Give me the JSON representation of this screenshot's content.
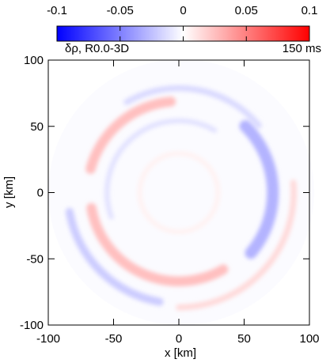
{
  "chart_data": {
    "type": "heatmap",
    "title": "",
    "panel_label": "δρ, R0.0-3D",
    "time_label": "150 ms",
    "xlabel": "x [km]",
    "ylabel": "y [km]",
    "xlim": [
      -100,
      100
    ],
    "ylim": [
      -100,
      100
    ],
    "x_ticks": [
      -100,
      -50,
      0,
      50,
      100
    ],
    "y_ticks": [
      -100,
      -50,
      0,
      50,
      100
    ],
    "x_tick_labels": [
      "-100",
      "-50",
      "0",
      "50",
      "100"
    ],
    "y_tick_labels": [
      "-100",
      "-50",
      "0",
      "50",
      "100"
    ],
    "domain_radius_km": 100,
    "colorbar": {
      "range": [
        -0.1,
        0.1
      ],
      "ticks": [
        -0.1,
        -0.05,
        0,
        0.05,
        0.1
      ],
      "tick_labels": [
        "-0.1",
        "-0.05",
        "0",
        "0.05",
        "0.1"
      ],
      "colors": {
        "min": "#0000ff",
        "mid": "#ffffff",
        "max": "#ff0000"
      },
      "placement": "top"
    },
    "grid": false,
    "features": [
      {
        "sign": "positive",
        "shape": "arc",
        "r_km": 70,
        "theta_start_deg": 95,
        "theta_end_deg": 165,
        "amplitude": 0.025
      },
      {
        "sign": "negative",
        "shape": "arc",
        "r_km": 80,
        "theta_start_deg": 40,
        "theta_end_deg": 120,
        "amplitude": -0.015
      },
      {
        "sign": "negative",
        "shape": "arc",
        "r_km": 72,
        "theta_start_deg": -40,
        "theta_end_deg": 45,
        "amplitude": -0.03
      },
      {
        "sign": "positive",
        "shape": "arc",
        "r_km": 88,
        "theta_start_deg": -90,
        "theta_end_deg": 5,
        "amplitude": 0.015
      },
      {
        "sign": "positive",
        "shape": "arc",
        "r_km": 68,
        "theta_start_deg": 190,
        "theta_end_deg": 300,
        "amplitude": 0.025
      },
      {
        "sign": "negative",
        "shape": "arc",
        "r_km": 85,
        "theta_start_deg": 190,
        "theta_end_deg": 260,
        "amplitude": -0.02
      },
      {
        "sign": "negative",
        "shape": "arc",
        "r_km": 55,
        "theta_start_deg": 60,
        "theta_end_deg": 200,
        "amplitude": -0.012
      },
      {
        "sign": "positive",
        "shape": "arc",
        "r_km": 30,
        "theta_start_deg": 0,
        "theta_end_deg": 360,
        "amplitude": 0.005
      }
    ]
  }
}
